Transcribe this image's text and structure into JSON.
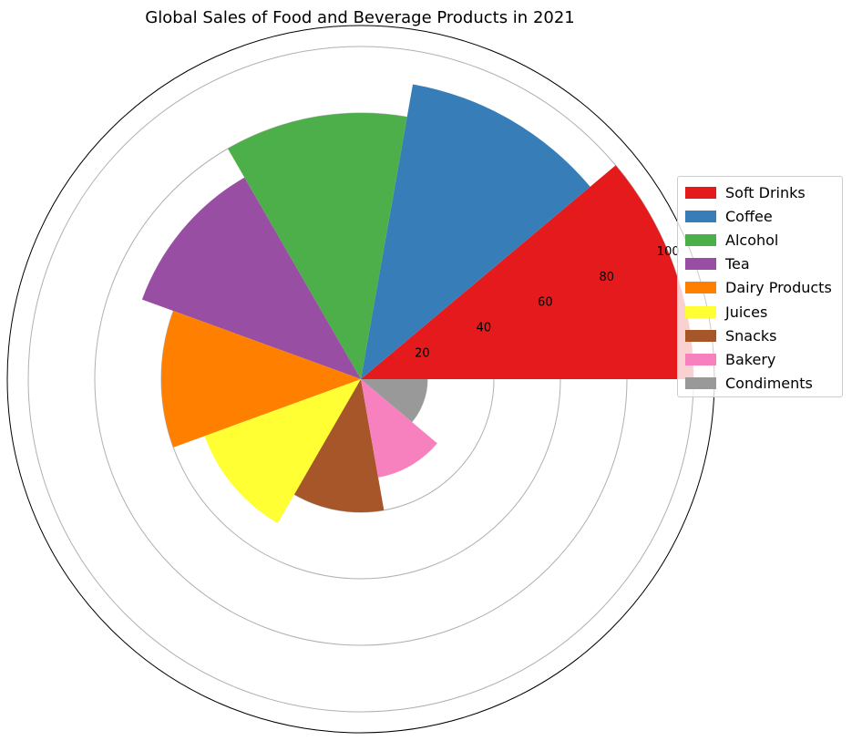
{
  "chart_data": {
    "type": "bar",
    "subtype": "polar",
    "title": "Global Sales of Food and Beverage Products in 2021",
    "categories": [
      "Soft Drinks",
      "Coffee",
      "Alcohol",
      "Tea",
      "Dairy Products",
      "Juices",
      "Snacks",
      "Bakery",
      "Condiments"
    ],
    "values": [
      100,
      90,
      80,
      70,
      60,
      50,
      40,
      30,
      20
    ],
    "colors": [
      "#e41a1c",
      "#377eb8",
      "#4daf4a",
      "#984ea3",
      "#ff7f00",
      "#ffff33",
      "#a65628",
      "#f781bf",
      "#999999"
    ],
    "radial_ticks": [
      "20",
      "40",
      "60",
      "80",
      "100"
    ],
    "radial_tick_values": [
      20,
      40,
      60,
      80,
      100
    ],
    "rlim": [
      0,
      100
    ],
    "grid": true,
    "legend_position": "right"
  }
}
